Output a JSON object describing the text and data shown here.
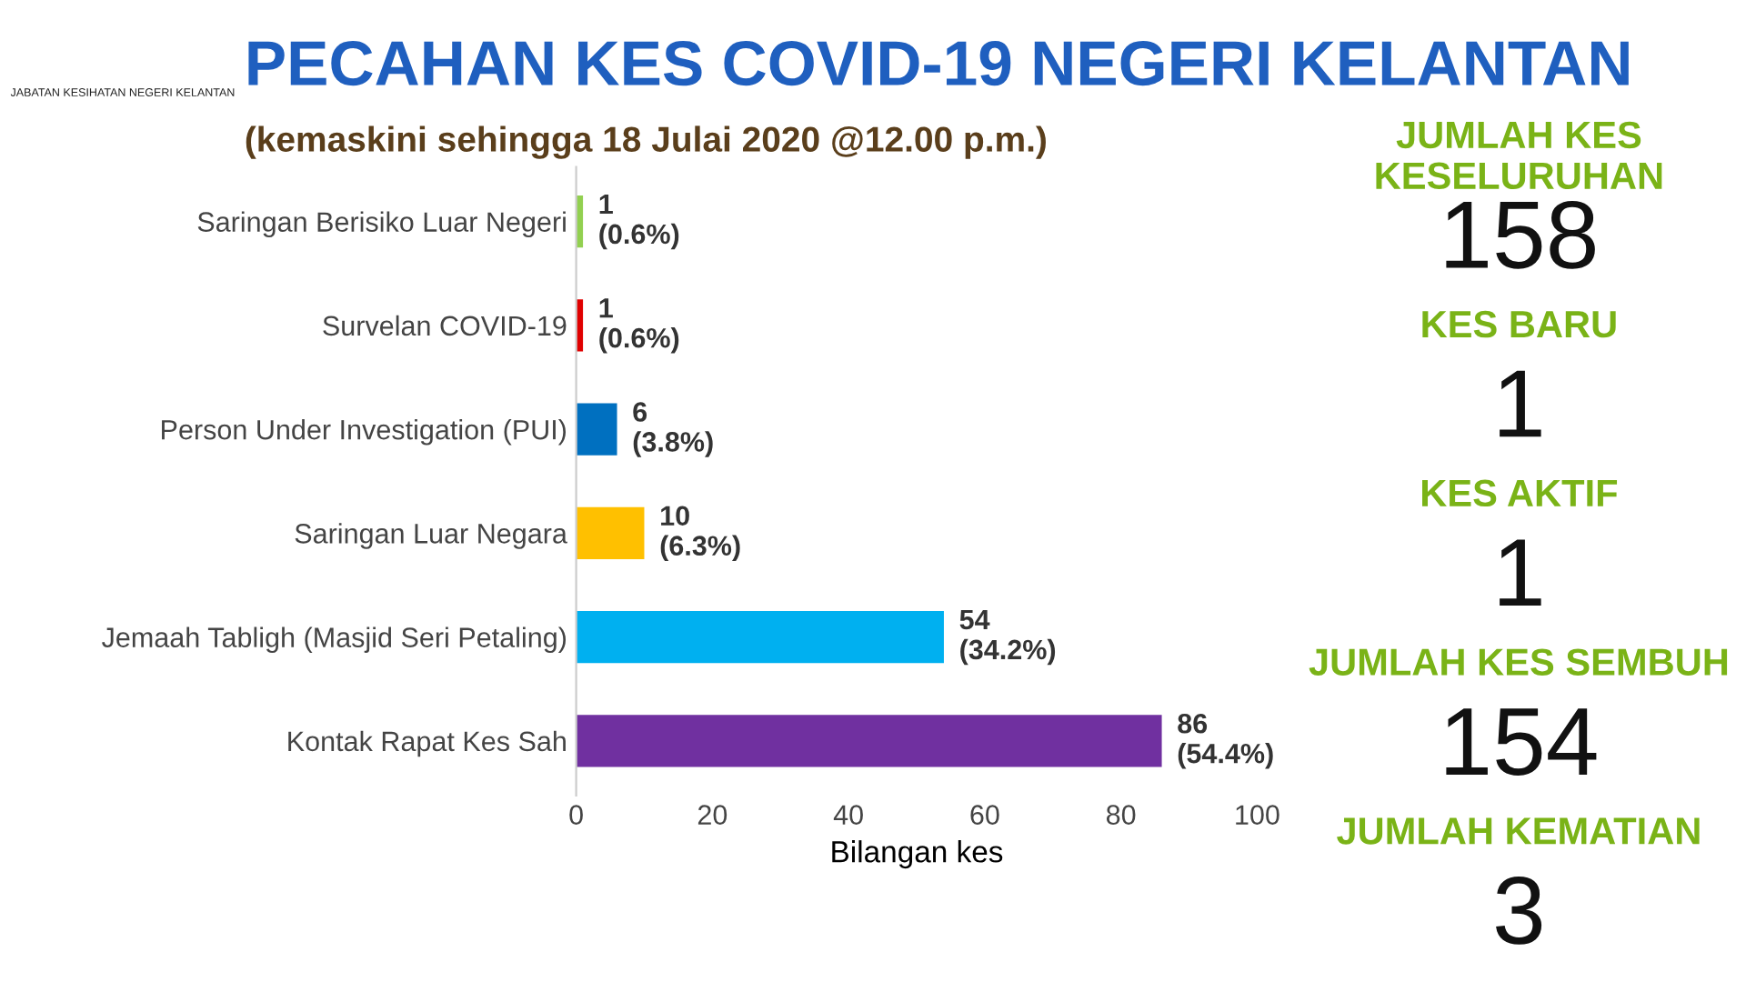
{
  "chart_data": [
    {
      "type": "bar",
      "orientation": "horizontal",
      "title": "PECAHAN KES COVID-19 NEGERI KELANTAN",
      "subtitle": "(kemaskini sehingga 18 Julai 2020 @12.00 p.m.)",
      "xlabel": "Bilangan kes",
      "categories": [
        "Saringan Berisiko Luar Negeri",
        "Survelan COVID-19",
        "Person Under Investigation (PUI)",
        "Saringan Luar Negara",
        "Jemaah Tabligh (Masjid Seri Petaling)",
        "Kontak Rapat Kes Sah"
      ],
      "values": [
        1,
        1,
        6,
        10,
        54,
        86
      ],
      "colors": [
        "#92d050",
        "#e00000",
        "#0070c0",
        "#ffc000",
        "#00b0f0",
        "#7030a0"
      ],
      "value_labels": [
        "1\n(0.6%)",
        "1\n(0.6%)",
        "6\n(3.8%)",
        "10\n(6.3%)",
        "54\n(34.2%)",
        "86\n(54.4%)"
      ],
      "xlim": [
        0,
        100
      ],
      "xticks": [
        0,
        20,
        40,
        60,
        80,
        100
      ],
      "grid": false,
      "legend": false,
      "annotations": [
        "JABATAN KESIHATAN NEGERI KELANTAN"
      ]
    },
    {
      "type": "other",
      "annotations": [
        "JUMLAH KES KESELURUHAN",
        "158",
        "KES BARU",
        "1",
        "KES AKTIF",
        "1",
        "JUMLAH KES SEMBUH",
        "154",
        "JUMLAH KEMATIAN",
        "3"
      ]
    }
  ]
}
